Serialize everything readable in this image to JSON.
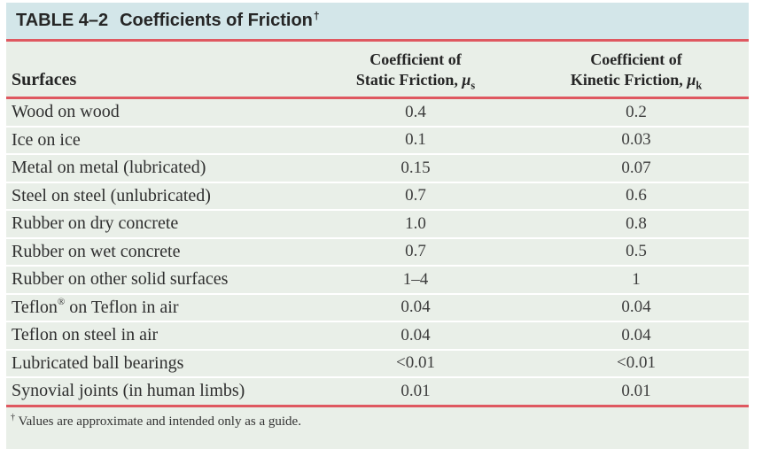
{
  "table": {
    "title": {
      "label": "TABLE 4–2",
      "heading": "Coefficients of Friction",
      "dagger": "†"
    },
    "columns": {
      "surfaces": "Surfaces",
      "static_line1": "Coefficient of",
      "static_line2": "Static Friction, ",
      "static_mu": "μ",
      "static_sub": "s",
      "kinetic_line1": "Coefficient of",
      "kinetic_line2": "Kinetic Friction, ",
      "kinetic_mu": "μ",
      "kinetic_sub": "k"
    },
    "rows": [
      {
        "surface": "Wood on wood",
        "static": "0.4",
        "kinetic": "0.2"
      },
      {
        "surface": "Ice on ice",
        "static": "0.1",
        "kinetic": "0.03"
      },
      {
        "surface": "Metal on metal (lubricated)",
        "static": "0.15",
        "kinetic": "0.07"
      },
      {
        "surface": "Steel on steel (unlubricated)",
        "static": "0.7",
        "kinetic": "0.6"
      },
      {
        "surface": "Rubber on dry concrete",
        "static": "1.0",
        "kinetic": "0.8"
      },
      {
        "surface": "Rubber on wet concrete",
        "static": "0.7",
        "kinetic": "0.5"
      },
      {
        "surface": "Rubber on other solid surfaces",
        "static": "1–4",
        "kinetic": "1"
      },
      {
        "surface": "Teflon",
        "sup": "®",
        "rest": " on Teflon in air",
        "static": "0.04",
        "kinetic": "0.04"
      },
      {
        "surface": "Teflon on steel in air",
        "static": "0.04",
        "kinetic": "0.04"
      },
      {
        "surface": "Lubricated ball bearings",
        "static": "<0.01",
        "kinetic": "<0.01"
      },
      {
        "surface": "Synovial joints (in human limbs)",
        "static": "0.01",
        "kinetic": "0.01"
      }
    ],
    "footnote": {
      "dagger": "†",
      "text": " Values are approximate and intended only as a guide."
    }
  },
  "colors": {
    "title_bar_bg": "#d3e6e9",
    "body_bg": "#e9efe8",
    "rule_red": "#df5860",
    "text": "#262626"
  }
}
